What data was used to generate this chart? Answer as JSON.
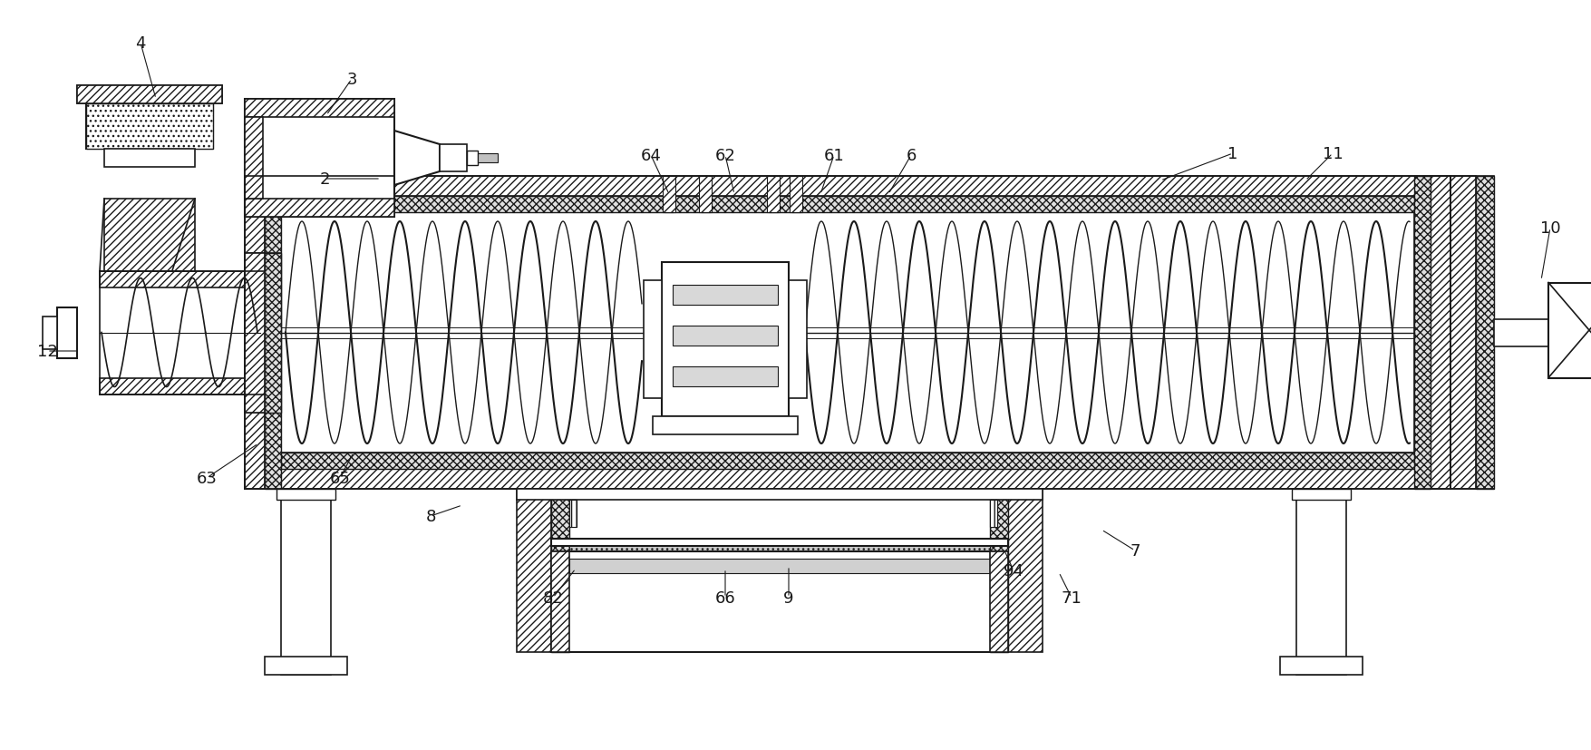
{
  "bg_color": "#ffffff",
  "line_color": "#1a1a1a",
  "figsize": [
    17.55,
    8.28
  ],
  "dpi": 100,
  "labels_data": [
    [
      "4",
      155,
      48,
      172,
      110
    ],
    [
      "3",
      388,
      88,
      360,
      128
    ],
    [
      "2",
      358,
      198,
      420,
      198
    ],
    [
      "1",
      1360,
      170,
      1280,
      200
    ],
    [
      "11",
      1470,
      170,
      1440,
      200
    ],
    [
      "10",
      1710,
      252,
      1700,
      310
    ],
    [
      "12",
      52,
      388,
      88,
      388
    ],
    [
      "6",
      1005,
      172,
      980,
      215
    ],
    [
      "61",
      920,
      172,
      905,
      215
    ],
    [
      "62",
      800,
      172,
      810,
      215
    ],
    [
      "64",
      718,
      172,
      738,
      215
    ],
    [
      "63",
      228,
      528,
      285,
      490
    ],
    [
      "65",
      375,
      528,
      390,
      500
    ],
    [
      "7",
      1252,
      608,
      1215,
      585
    ],
    [
      "8",
      475,
      570,
      510,
      558
    ],
    [
      "9",
      870,
      660,
      870,
      625
    ],
    [
      "71",
      1182,
      660,
      1168,
      632
    ],
    [
      "82",
      610,
      660,
      635,
      628
    ],
    [
      "66",
      800,
      660,
      800,
      628
    ],
    [
      "94",
      1118,
      630,
      1108,
      608
    ]
  ]
}
